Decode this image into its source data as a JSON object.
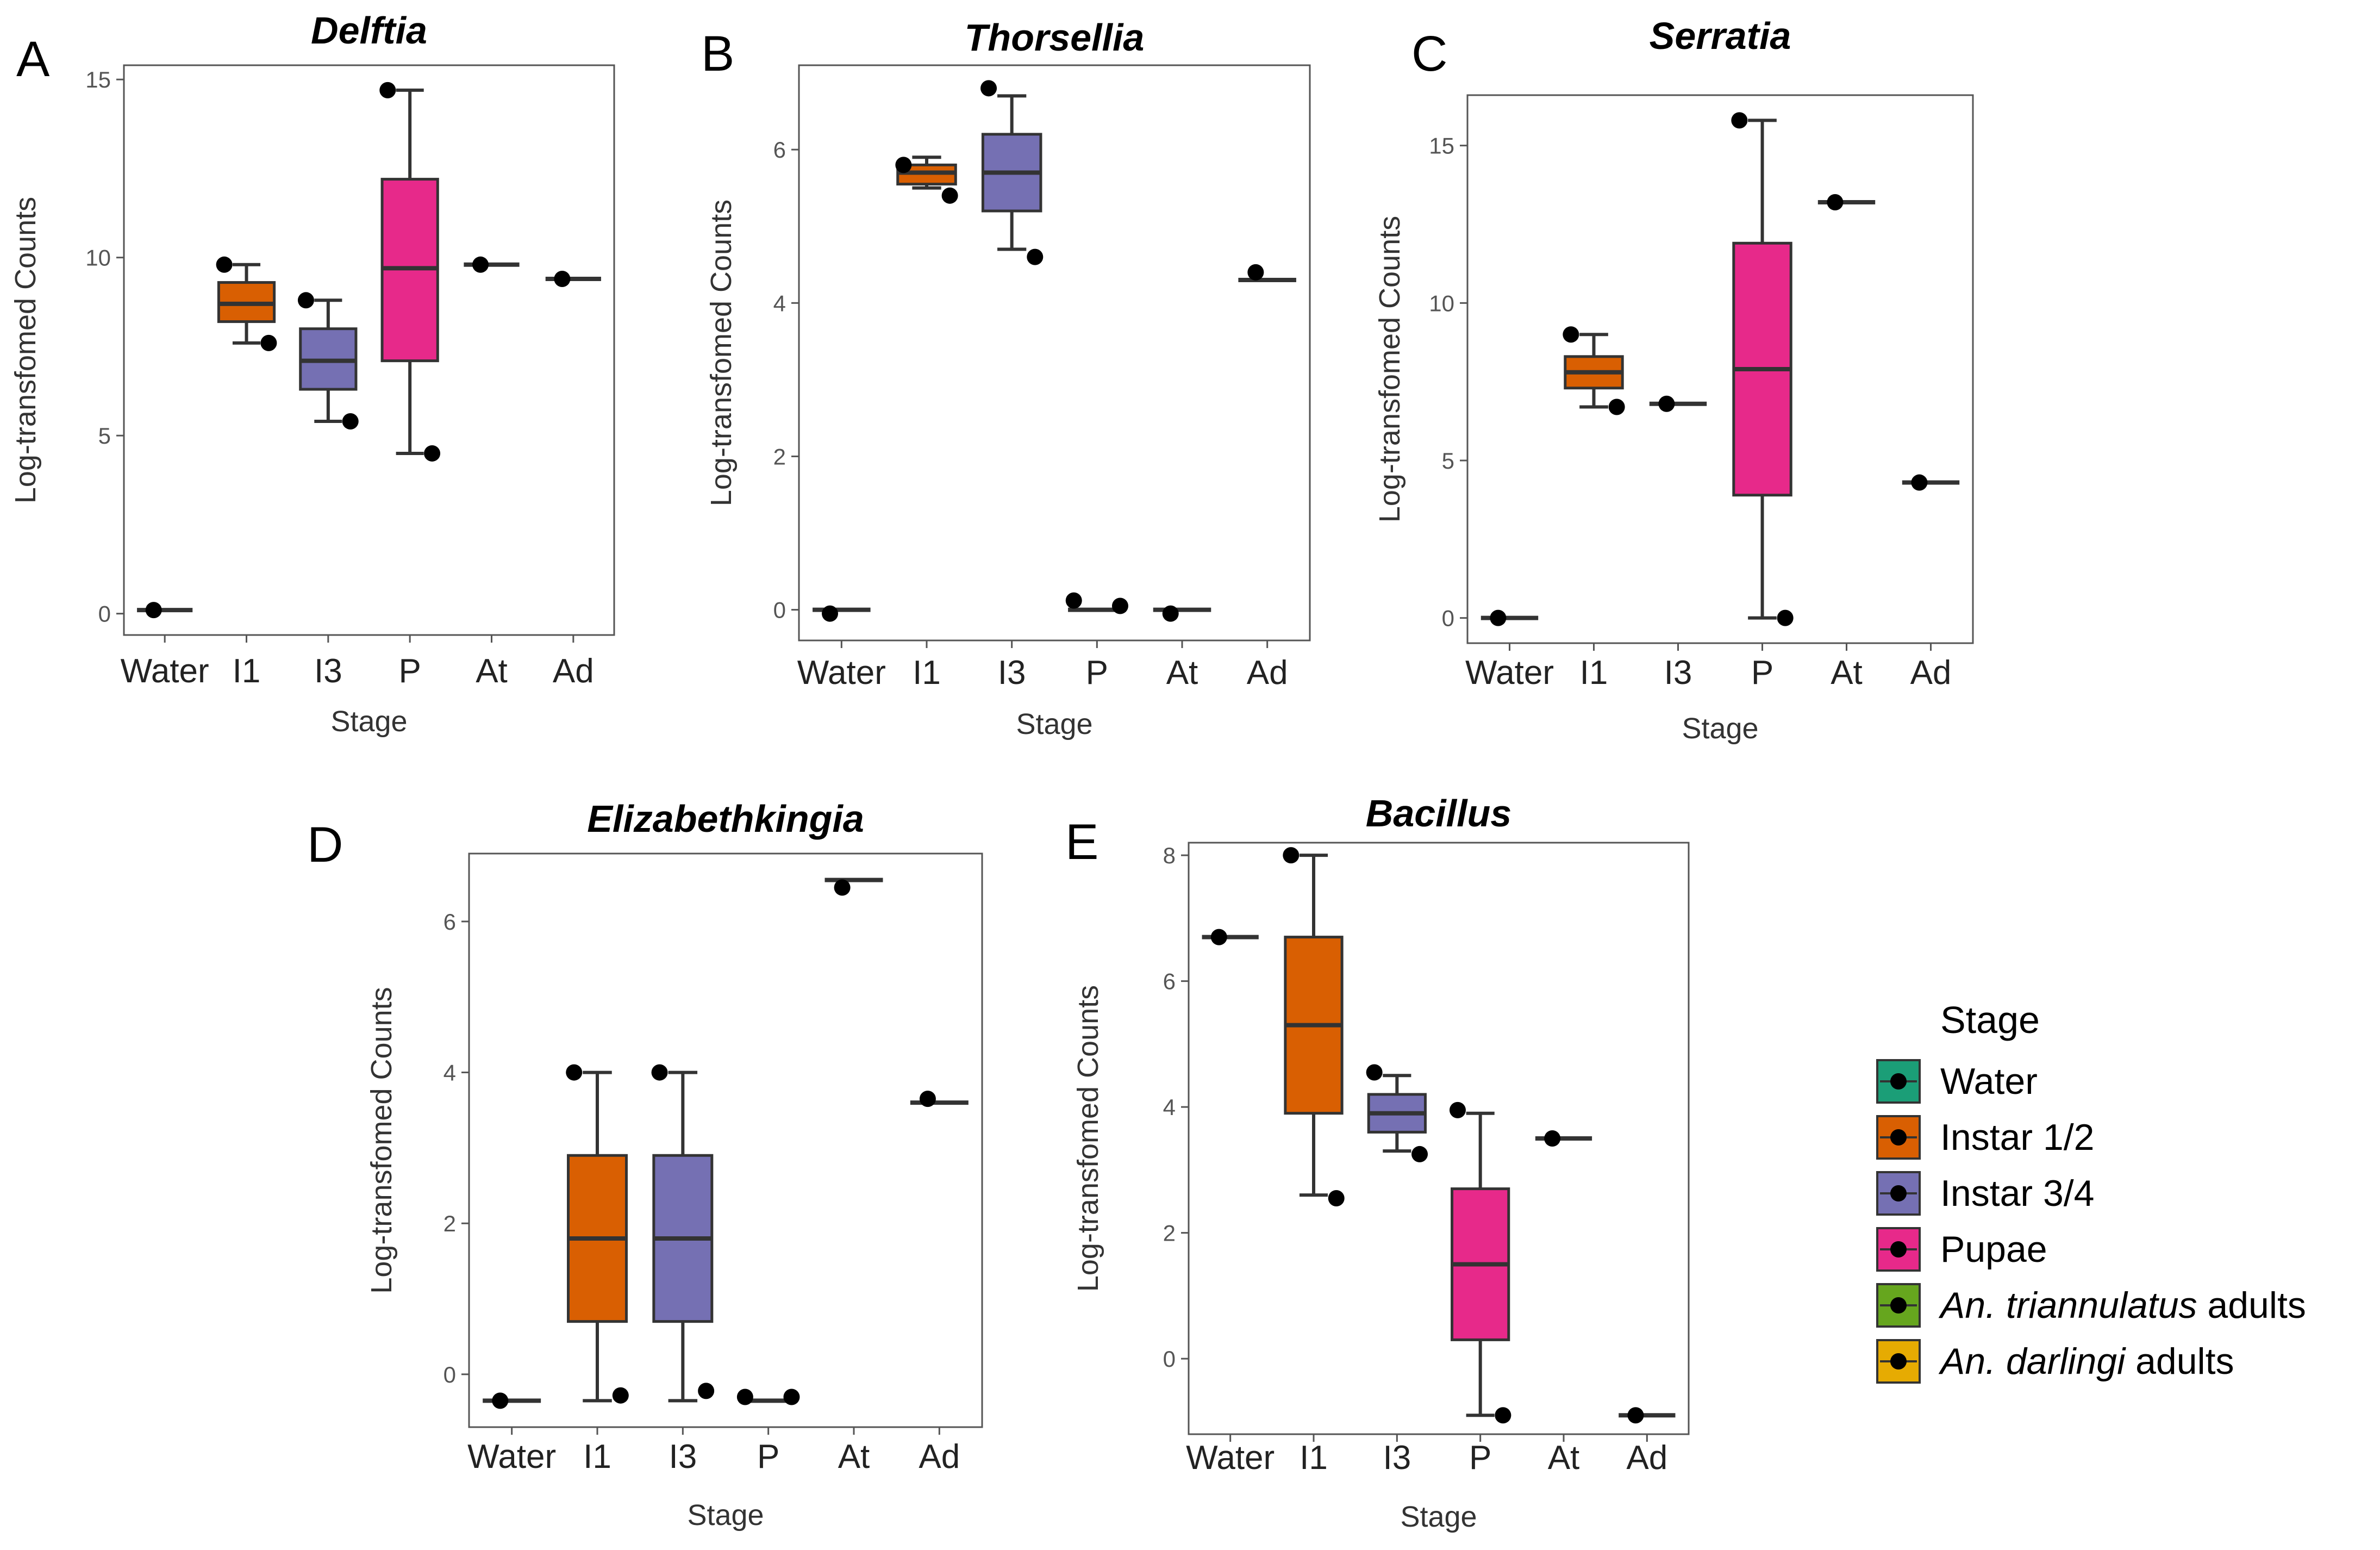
{
  "xlabel": "Stage",
  "ylabel": "Log-transfomed Counts",
  "legend": {
    "title": "Stage",
    "items": [
      {
        "key": "Water",
        "parts": [
          {
            "t": "Water",
            "i": false
          }
        ],
        "color": "#1b9e77"
      },
      {
        "key": "I1",
        "parts": [
          {
            "t": "Instar 1/2",
            "i": false
          }
        ],
        "color": "#d95f02"
      },
      {
        "key": "I3",
        "parts": [
          {
            "t": "Instar 3/4",
            "i": false
          }
        ],
        "color": "#7570b3"
      },
      {
        "key": "P",
        "parts": [
          {
            "t": "Pupae",
            "i": false
          }
        ],
        "color": "#e7298a"
      },
      {
        "key": "At",
        "parts": [
          {
            "t": "An. triannulatus",
            "i": true
          },
          {
            "t": " adults",
            "i": false
          }
        ],
        "color": "#66a61e"
      },
      {
        "key": "Ad",
        "parts": [
          {
            "t": "An. darlingi",
            "i": true
          },
          {
            "t": " adults",
            "i": false
          }
        ],
        "color": "#e6ab02"
      }
    ]
  },
  "chart_data": [
    {
      "panel": "A",
      "title": "Delftia",
      "type": "boxplot",
      "categories": [
        "Water",
        "I1",
        "I3",
        "P",
        "At",
        "Ad"
      ],
      "ylim": [
        -0.6,
        15.4
      ],
      "yticks": [
        0,
        5,
        10,
        15
      ],
      "boxes": [
        {
          "x": "Water",
          "q1": 0.1,
          "med": 0.1,
          "q3": 0.1,
          "lo": 0.1,
          "hi": 0.1,
          "points": [
            0.1
          ]
        },
        {
          "x": "I1",
          "q1": 8.2,
          "med": 8.7,
          "q3": 9.3,
          "lo": 7.6,
          "hi": 9.8,
          "points": [
            9.8,
            7.6
          ]
        },
        {
          "x": "I3",
          "q1": 6.3,
          "med": 7.1,
          "q3": 8.0,
          "lo": 5.4,
          "hi": 8.8,
          "points": [
            8.8,
            5.4
          ]
        },
        {
          "x": "P",
          "q1": 7.1,
          "med": 9.7,
          "q3": 12.2,
          "lo": 4.5,
          "hi": 14.7,
          "points": [
            14.7,
            4.5
          ]
        },
        {
          "x": "At",
          "q1": 9.8,
          "med": 9.8,
          "q3": 9.8,
          "lo": 9.8,
          "hi": 9.8,
          "points": [
            9.8
          ]
        },
        {
          "x": "Ad",
          "q1": 9.4,
          "med": 9.4,
          "q3": 9.4,
          "lo": 9.4,
          "hi": 9.4,
          "points": [
            9.4
          ]
        }
      ]
    },
    {
      "panel": "B",
      "title": "Thorsellia",
      "type": "boxplot",
      "categories": [
        "Water",
        "I1",
        "I3",
        "P",
        "At",
        "Ad"
      ],
      "ylim": [
        -0.4,
        7.1
      ],
      "yticks": [
        0,
        2,
        4,
        6
      ],
      "boxes": [
        {
          "x": "Water",
          "q1": 0.0,
          "med": 0.0,
          "q3": 0.0,
          "lo": 0.0,
          "hi": 0.0,
          "points": [
            -0.05
          ]
        },
        {
          "x": "I1",
          "q1": 5.55,
          "med": 5.7,
          "q3": 5.8,
          "lo": 5.5,
          "hi": 5.9,
          "points": [
            5.8,
            5.4
          ]
        },
        {
          "x": "I3",
          "q1": 5.2,
          "med": 5.7,
          "q3": 6.2,
          "lo": 4.7,
          "hi": 6.7,
          "points": [
            6.8,
            4.6
          ]
        },
        {
          "x": "P",
          "q1": 0.0,
          "med": 0.0,
          "q3": 0.0,
          "lo": 0.0,
          "hi": 0.0,
          "points": [
            0.12,
            0.05
          ]
        },
        {
          "x": "At",
          "q1": 0.0,
          "med": 0.0,
          "q3": 0.0,
          "lo": 0.0,
          "hi": 0.0,
          "points": [
            -0.05
          ]
        },
        {
          "x": "Ad",
          "q1": 4.3,
          "med": 4.3,
          "q3": 4.3,
          "lo": 4.3,
          "hi": 4.3,
          "points": [
            4.4
          ]
        }
      ]
    },
    {
      "panel": "C",
      "title": "Serratia",
      "type": "boxplot",
      "categories": [
        "Water",
        "I1",
        "I3",
        "P",
        "At",
        "Ad"
      ],
      "ylim": [
        -0.8,
        16.6
      ],
      "yticks": [
        0,
        5,
        10,
        15
      ],
      "boxes": [
        {
          "x": "Water",
          "q1": 0.0,
          "med": 0.0,
          "q3": 0.0,
          "lo": 0.0,
          "hi": 0.0,
          "points": [
            0.0
          ]
        },
        {
          "x": "I1",
          "q1": 7.3,
          "med": 7.8,
          "q3": 8.3,
          "lo": 6.7,
          "hi": 9.0,
          "points": [
            9.0,
            6.7
          ]
        },
        {
          "x": "I3",
          "q1": 6.8,
          "med": 6.8,
          "q3": 6.8,
          "lo": 6.8,
          "hi": 6.8,
          "points": [
            6.8
          ]
        },
        {
          "x": "P",
          "q1": 3.9,
          "med": 7.9,
          "q3": 11.9,
          "lo": 0.0,
          "hi": 15.8,
          "points": [
            15.8,
            0.0
          ]
        },
        {
          "x": "At",
          "q1": 13.2,
          "med": 13.2,
          "q3": 13.2,
          "lo": 13.2,
          "hi": 13.2,
          "points": [
            13.2
          ]
        },
        {
          "x": "Ad",
          "q1": 4.3,
          "med": 4.3,
          "q3": 4.3,
          "lo": 4.3,
          "hi": 4.3,
          "points": [
            4.3
          ]
        }
      ]
    },
    {
      "panel": "D",
      "title": "Elizabethkingia",
      "type": "boxplot",
      "categories": [
        "Water",
        "I1",
        "I3",
        "P",
        "At",
        "Ad"
      ],
      "ylim": [
        -0.7,
        6.9
      ],
      "yticks": [
        0,
        2,
        4,
        6
      ],
      "boxes": [
        {
          "x": "Water",
          "q1": -0.35,
          "med": -0.35,
          "q3": -0.35,
          "lo": -0.35,
          "hi": -0.35,
          "points": [
            -0.35
          ]
        },
        {
          "x": "I1",
          "q1": 0.7,
          "med": 1.8,
          "q3": 2.9,
          "lo": -0.35,
          "hi": 4.0,
          "points": [
            4.0,
            -0.28
          ]
        },
        {
          "x": "I3",
          "q1": 0.7,
          "med": 1.8,
          "q3": 2.9,
          "lo": -0.35,
          "hi": 4.0,
          "points": [
            4.0,
            -0.22
          ]
        },
        {
          "x": "P",
          "q1": -0.35,
          "med": -0.35,
          "q3": -0.35,
          "lo": -0.35,
          "hi": -0.35,
          "points": [
            -0.3,
            -0.3
          ]
        },
        {
          "x": "At",
          "q1": 6.55,
          "med": 6.55,
          "q3": 6.55,
          "lo": 6.55,
          "hi": 6.55,
          "points": [
            6.45
          ]
        },
        {
          "x": "Ad",
          "q1": 3.6,
          "med": 3.6,
          "q3": 3.6,
          "lo": 3.6,
          "hi": 3.6,
          "points": [
            3.65
          ]
        }
      ]
    },
    {
      "panel": "E",
      "title": "Bacillus",
      "type": "boxplot",
      "categories": [
        "Water",
        "I1",
        "I3",
        "P",
        "At",
        "Ad"
      ],
      "ylim": [
        -1.2,
        8.2
      ],
      "yticks": [
        0,
        2,
        4,
        6,
        8
      ],
      "boxes": [
        {
          "x": "Water",
          "q1": 6.7,
          "med": 6.7,
          "q3": 6.7,
          "lo": 6.7,
          "hi": 6.7,
          "points": [
            6.7
          ]
        },
        {
          "x": "I1",
          "q1": 3.9,
          "med": 5.3,
          "q3": 6.7,
          "lo": 2.6,
          "hi": 8.0,
          "points": [
            8.0,
            2.55
          ]
        },
        {
          "x": "I3",
          "q1": 3.6,
          "med": 3.9,
          "q3": 4.2,
          "lo": 3.3,
          "hi": 4.5,
          "points": [
            4.55,
            3.25
          ]
        },
        {
          "x": "P",
          "q1": 0.3,
          "med": 1.5,
          "q3": 2.7,
          "lo": -0.9,
          "hi": 3.9,
          "points": [
            3.95,
            -0.9
          ]
        },
        {
          "x": "At",
          "q1": 3.5,
          "med": 3.5,
          "q3": 3.5,
          "lo": 3.5,
          "hi": 3.5,
          "points": [
            3.5
          ]
        },
        {
          "x": "Ad",
          "q1": -0.9,
          "med": -0.9,
          "q3": -0.9,
          "lo": -0.9,
          "hi": -0.9,
          "points": [
            -0.9
          ]
        }
      ]
    }
  ]
}
